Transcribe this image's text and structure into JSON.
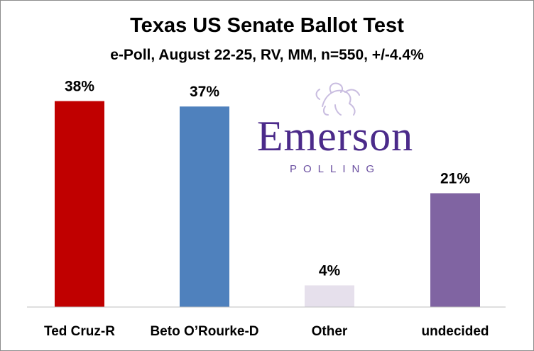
{
  "chart_data": {
    "type": "bar",
    "title": "Texas US Senate Ballot Test",
    "subtitle": "e-Poll, August 22-25, RV, MM, n=550, +/-4.4%",
    "categories": [
      "Ted Cruz-R",
      "Beto O’Rourke-D",
      "Other",
      "undecided"
    ],
    "values": [
      38,
      37,
      4,
      21
    ],
    "data_labels": [
      "38%",
      "37%",
      "4%",
      "21%"
    ],
    "colors": [
      "#c00000",
      "#4f81bd",
      "#e6e0ec",
      "#8064a2"
    ],
    "ylim": [
      0,
      42
    ],
    "grid": false,
    "legend": "none"
  },
  "logo": {
    "word": "Emerson",
    "sub": "POLLING",
    "color": "#4b2a8a",
    "icon": "lion-crest-icon"
  }
}
